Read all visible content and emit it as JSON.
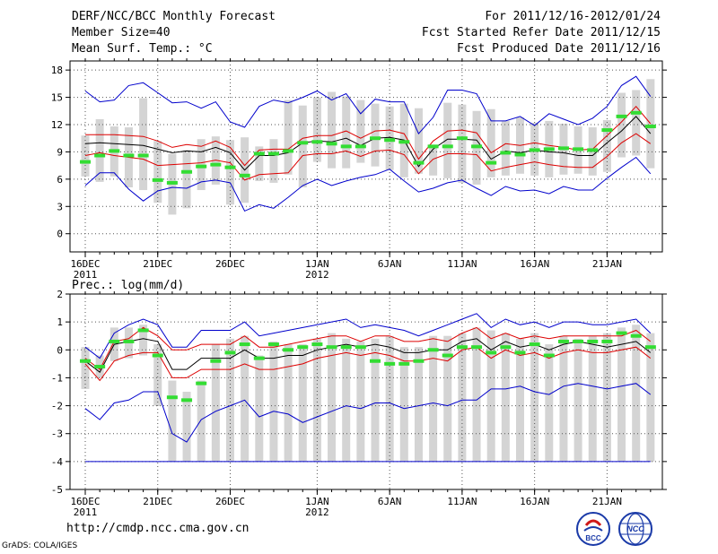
{
  "header": {
    "title": "DERF/NCC/BCC Monthly Forecast",
    "member_size": "Member Size=40",
    "variable": "Mean Surf. Temp.: °C",
    "period": "For 2011/12/16-2012/01/24",
    "started": "Fcst Started Refer Date 2011/12/15",
    "produced": "Fcst Produced Date 2011/12/16"
  },
  "footer": {
    "url": "http://cmdp.ncc.cma.gov.cn",
    "grads": "GrADS: COLA/IGES",
    "logo_left_text": "BCC",
    "logo_right_text": "NCC"
  },
  "colors": {
    "box": "#d4d4d4",
    "median": "#33dd33",
    "mean": "#000000",
    "std": "#dd0000",
    "extreme": "#0000cc"
  },
  "chart_data": [
    {
      "type": "line",
      "name": "temperature",
      "title": "Mean Surf. Temp.: °C",
      "x_labels": [
        {
          "day": 0,
          "text": "16DEC"
        },
        {
          "day": 5,
          "text": "21DEC"
        },
        {
          "day": 10,
          "text": "26DEC"
        },
        {
          "day": 16,
          "text": "1JAN"
        },
        {
          "day": 21,
          "text": "6JAN"
        },
        {
          "day": 26,
          "text": "11JAN"
        },
        {
          "day": 31,
          "text": "16JAN"
        },
        {
          "day": 36,
          "text": "21JAN"
        }
      ],
      "x_sub_labels": [
        {
          "day": 0,
          "text": "2011"
        },
        {
          "day": 16,
          "text": "2012"
        }
      ],
      "ylim": [
        -2,
        19
      ],
      "yticks": [
        0,
        3,
        6,
        9,
        12,
        15,
        18
      ],
      "series": {
        "box_low": [
          6.3,
          5.7,
          6.3,
          5.1,
          4.8,
          3.4,
          2.1,
          2.8,
          4.8,
          5.4,
          3.2,
          3.4,
          5.8,
          5.6,
          6.5,
          5.1,
          7.9,
          7.2,
          7.2,
          7.8,
          7.4,
          7.0,
          6.2,
          6.6,
          6.4,
          6.1,
          5.6,
          5.4,
          6.2,
          6.4,
          6.6,
          6.4,
          6.2,
          6.5,
          6.6,
          6.4,
          6.8,
          8.4,
          8.6,
          7.2
        ],
        "box_high": [
          10.8,
          12.6,
          11.8,
          11.7,
          14.9,
          10.2,
          8.8,
          9.2,
          10.4,
          10.7,
          10.3,
          10.6,
          9.6,
          10.4,
          14.7,
          14.1,
          15.0,
          15.6,
          15.1,
          14.7,
          14.3,
          14.0,
          14.3,
          13.8,
          9.8,
          14.4,
          14.2,
          13.5,
          13.7,
          12.4,
          12.8,
          12.2,
          12.4,
          12.1,
          11.8,
          11.7,
          12.5,
          15.5,
          15.8,
          17.0
        ],
        "median": [
          7.9,
          8.6,
          9.1,
          8.6,
          8.6,
          5.9,
          5.6,
          6.8,
          7.4,
          7.6,
          7.3,
          6.4,
          8.8,
          8.8,
          9.1,
          10.0,
          10.1,
          9.9,
          9.6,
          9.6,
          10.5,
          10.3,
          10.1,
          7.8,
          9.6,
          9.6,
          10.5,
          9.6,
          7.8,
          8.9,
          8.7,
          9.2,
          9.3,
          9.4,
          9.3,
          9.2,
          11.4,
          12.9,
          13.3,
          11.8
        ],
        "mean": [
          9.9,
          10.0,
          9.9,
          9.8,
          9.7,
          9.3,
          8.9,
          9.1,
          9.0,
          9.5,
          8.9,
          7.0,
          8.6,
          8.6,
          8.9,
          10.0,
          10.2,
          10.1,
          10.5,
          9.7,
          10.5,
          10.6,
          10.3,
          7.4,
          9.3,
          10.4,
          10.4,
          10.3,
          8.2,
          9.1,
          8.9,
          9.2,
          9.0,
          8.9,
          8.6,
          8.6,
          10.0,
          11.3,
          12.9,
          11.0
        ],
        "std_high": [
          10.9,
          10.9,
          10.9,
          10.8,
          10.7,
          10.2,
          9.5,
          9.8,
          9.6,
          10.2,
          9.5,
          7.5,
          9.2,
          9.3,
          9.3,
          10.5,
          10.8,
          10.8,
          11.3,
          10.5,
          11.3,
          11.4,
          11.0,
          8.2,
          10.2,
          11.3,
          11.4,
          11.1,
          8.9,
          9.9,
          9.7,
          10.0,
          9.7,
          9.5,
          9.2,
          9.3,
          10.8,
          12.3,
          14.0,
          12.1
        ],
        "std_low": [
          8.6,
          8.9,
          8.6,
          8.4,
          8.2,
          7.5,
          7.6,
          7.7,
          7.8,
          8.1,
          7.8,
          5.9,
          6.5,
          6.6,
          6.7,
          8.6,
          8.8,
          8.8,
          9.1,
          8.5,
          9.1,
          9.2,
          8.7,
          6.6,
          8.2,
          8.8,
          8.8,
          8.7,
          6.9,
          7.3,
          7.6,
          7.9,
          7.6,
          7.4,
          7.3,
          7.3,
          8.5,
          10.0,
          11.0,
          9.9
        ],
        "max": [
          15.7,
          14.5,
          14.7,
          16.3,
          16.6,
          15.5,
          14.4,
          14.5,
          13.8,
          14.5,
          12.3,
          11.7,
          14.0,
          14.7,
          14.4,
          15.0,
          15.7,
          14.7,
          15.4,
          13.2,
          14.8,
          14.5,
          14.5,
          11.0,
          12.8,
          15.8,
          15.8,
          15.4,
          12.4,
          12.4,
          12.9,
          11.9,
          13.2,
          12.6,
          12.0,
          12.7,
          14.0,
          16.3,
          17.3,
          15.1
        ],
        "min": [
          5.3,
          6.7,
          6.7,
          4.9,
          3.6,
          4.7,
          5.1,
          5.0,
          5.7,
          5.9,
          5.6,
          2.5,
          3.2,
          2.8,
          4.0,
          5.3,
          6.0,
          5.3,
          5.8,
          6.2,
          6.5,
          7.1,
          5.8,
          4.6,
          5.0,
          5.6,
          5.9,
          5.0,
          4.2,
          5.2,
          4.7,
          4.8,
          4.4,
          5.2,
          4.8,
          4.8,
          6.1,
          7.3,
          8.4,
          6.6
        ]
      }
    },
    {
      "type": "line",
      "name": "precipitation",
      "title": "Prec.: log(mm/d)",
      "x_labels": [
        {
          "day": 0,
          "text": "16DEC"
        },
        {
          "day": 5,
          "text": "21DEC"
        },
        {
          "day": 10,
          "text": "26DEC"
        },
        {
          "day": 16,
          "text": "1JAN"
        },
        {
          "day": 21,
          "text": "6JAN"
        },
        {
          "day": 26,
          "text": "11JAN"
        },
        {
          "day": 31,
          "text": "16JAN"
        },
        {
          "day": 36,
          "text": "21JAN"
        }
      ],
      "x_sub_labels": [
        {
          "day": 0,
          "text": "2011"
        },
        {
          "day": 16,
          "text": "2012"
        }
      ],
      "ylim": [
        -5,
        2
      ],
      "yticks": [
        -5,
        -4,
        -3,
        -2,
        -1,
        0,
        1,
        2
      ],
      "series": {
        "box_low": [
          -1.4,
          -1.0,
          -0.4,
          -0.3,
          -0.2,
          -2.0,
          -4.0,
          -4.0,
          -4.0,
          -4.0,
          -4.0,
          -4.0,
          -4.0,
          -4.0,
          -4.0,
          -4.0,
          -4.0,
          -4.0,
          -4.0,
          -4.0,
          -4.0,
          -4.0,
          -4.0,
          -4.0,
          -4.0,
          -4.0,
          -4.0,
          -4.0,
          -4.0,
          -4.0,
          -4.0,
          -4.0,
          -4.0,
          -4.0,
          -4.0,
          -4.0,
          -4.0,
          -4.0,
          -4.0,
          -4.0
        ],
        "box_high": [
          0.1,
          -0.2,
          0.8,
          0.8,
          0.9,
          0.2,
          -1.1,
          -1.5,
          -1.1,
          0.2,
          0.4,
          0.5,
          -0.2,
          0.3,
          0.2,
          0.2,
          0.4,
          0.6,
          0.4,
          0.3,
          0.4,
          0.5,
          0.1,
          0.1,
          0.5,
          0.5,
          0.6,
          0.8,
          0.7,
          0.6,
          0.4,
          0.6,
          0.2,
          0.5,
          0.4,
          0.5,
          0.6,
          0.8,
          0.9,
          0.6
        ],
        "median": [
          -0.4,
          -0.6,
          0.3,
          0.3,
          0.7,
          -0.2,
          -1.7,
          -1.8,
          -1.2,
          -0.4,
          -0.1,
          0.2,
          -0.3,
          0.2,
          0.0,
          0.1,
          0.2,
          0.1,
          0.1,
          0.1,
          -0.4,
          -0.5,
          -0.5,
          -0.4,
          0.0,
          -0.2,
          0.1,
          0.1,
          -0.1,
          0.1,
          -0.1,
          0.2,
          -0.2,
          0.3,
          0.3,
          0.3,
          0.3,
          0.6,
          0.5,
          0.1
        ],
        "mean": [
          -0.4,
          -0.8,
          0.2,
          0.3,
          0.4,
          0.3,
          -0.7,
          -0.7,
          -0.3,
          -0.3,
          -0.3,
          0.0,
          -0.3,
          -0.3,
          -0.2,
          -0.2,
          0.0,
          0.1,
          0.2,
          0.1,
          0.2,
          0.1,
          -0.1,
          -0.1,
          0.0,
          0.0,
          0.3,
          0.4,
          0.0,
          0.3,
          0.1,
          0.2,
          0.0,
          0.2,
          0.3,
          0.2,
          0.1,
          0.2,
          0.3,
          -0.1
        ],
        "std_high": [
          -0.3,
          -0.7,
          0.3,
          0.4,
          0.8,
          0.5,
          0.0,
          0.0,
          0.2,
          0.2,
          0.2,
          0.5,
          0.1,
          0.1,
          0.2,
          0.3,
          0.4,
          0.5,
          0.5,
          0.3,
          0.5,
          0.5,
          0.3,
          0.3,
          0.4,
          0.3,
          0.6,
          0.8,
          0.4,
          0.6,
          0.4,
          0.5,
          0.4,
          0.5,
          0.5,
          0.5,
          0.5,
          0.5,
          0.7,
          0.3
        ],
        "std_low": [
          -0.5,
          -1.1,
          -0.4,
          -0.2,
          -0.1,
          -0.1,
          -1.0,
          -1.0,
          -0.7,
          -0.7,
          -0.7,
          -0.5,
          -0.7,
          -0.7,
          -0.6,
          -0.5,
          -0.3,
          -0.2,
          -0.1,
          -0.2,
          -0.1,
          -0.2,
          -0.4,
          -0.4,
          -0.3,
          -0.4,
          0.0,
          0.1,
          -0.3,
          0.0,
          -0.2,
          -0.1,
          -0.3,
          -0.1,
          0.0,
          -0.1,
          -0.1,
          0.0,
          0.1,
          -0.3
        ],
        "max": [
          0.1,
          -0.3,
          0.6,
          0.9,
          1.1,
          0.9,
          0.1,
          0.1,
          0.7,
          0.7,
          0.7,
          1.0,
          0.5,
          0.6,
          0.7,
          0.8,
          0.9,
          1.0,
          1.1,
          0.8,
          0.9,
          0.8,
          0.7,
          0.5,
          0.7,
          0.9,
          1.1,
          1.3,
          0.8,
          1.1,
          0.9,
          1.0,
          0.8,
          1.0,
          1.0,
          0.9,
          0.9,
          1.0,
          1.1,
          0.6
        ],
        "min": [
          -2.1,
          -2.5,
          -1.9,
          -1.8,
          -1.5,
          -1.5,
          -3.0,
          -3.3,
          -2.5,
          -2.2,
          -2.0,
          -1.8,
          -2.4,
          -2.2,
          -2.3,
          -2.6,
          -2.4,
          -2.2,
          -2.0,
          -2.1,
          -1.9,
          -1.9,
          -2.1,
          -2.0,
          -1.9,
          -2.0,
          -1.8,
          -1.8,
          -1.4,
          -1.4,
          -1.3,
          -1.5,
          -1.6,
          -1.3,
          -1.2,
          -1.3,
          -1.4,
          -1.3,
          -1.2,
          -1.6
        ]
      },
      "floor_line": -4
    }
  ]
}
